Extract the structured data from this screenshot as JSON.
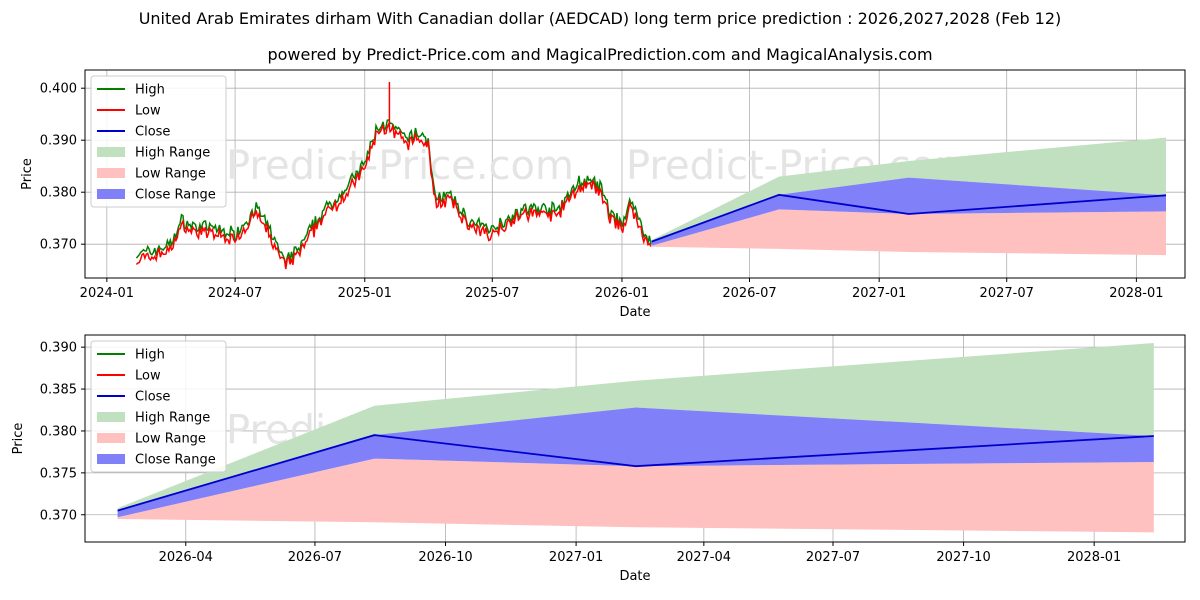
{
  "title": "United Arab Emirates dirham With Canadian dollar (AEDCAD) long term price prediction : 2026,2027,2028 (Feb 12)",
  "subtitle": "powered by Predict-Price.com and MagicalPrediction.com and MagicalAnalysis.com",
  "watermark": "Predict-Price.com",
  "colors": {
    "high": "#008000",
    "low": "#ff0000",
    "close": "#0000cd",
    "high_range": "#c0e0c0",
    "low_range": "#ffc0c0",
    "close_range": "#8080f8"
  },
  "chart_data": [
    {
      "type": "line",
      "panel": "top",
      "xlabel": "Date",
      "ylabel": "Price",
      "x_ticks": [
        "2024-01",
        "2024-07",
        "2025-01",
        "2025-07",
        "2026-01",
        "2026-07",
        "2027-01",
        "2027-07",
        "2028-01"
      ],
      "y_ticks": [
        "0.370",
        "0.380",
        "0.390",
        "0.400"
      ],
      "xlim": [
        "2023-12-01",
        "2028-03-10"
      ],
      "ylim": [
        0.3635,
        0.4035
      ],
      "grid": true,
      "legend": [
        "High",
        "Low",
        "Close",
        "High Range",
        "Low Range",
        "Close Range"
      ],
      "legend_position": "top-left",
      "history_dates": [
        "2024-02-12",
        "2024-03-01",
        "2024-04-01",
        "2024-04-15",
        "2024-05-01",
        "2024-06-01",
        "2024-07-01",
        "2024-08-01",
        "2024-08-20",
        "2024-09-10",
        "2024-10-01",
        "2024-11-01",
        "2024-12-01",
        "2025-01-01",
        "2025-01-20",
        "2025-02-03",
        "2025-02-15",
        "2025-03-01",
        "2025-03-15",
        "2025-04-01",
        "2025-04-10",
        "2025-05-01",
        "2025-06-01",
        "2025-07-01",
        "2025-08-01",
        "2025-09-01",
        "2025-10-01",
        "2025-11-01",
        "2025-11-20",
        "2025-12-01",
        "2025-12-15",
        "2026-01-01",
        "2026-01-15",
        "2026-02-01",
        "2026-02-12"
      ],
      "history_values": [
        0.3675,
        0.368,
        0.3695,
        0.374,
        0.373,
        0.3725,
        0.3715,
        0.3765,
        0.372,
        0.366,
        0.369,
        0.3755,
        0.3795,
        0.385,
        0.3925,
        0.3925,
        0.3915,
        0.3895,
        0.391,
        0.3895,
        0.3785,
        0.379,
        0.3735,
        0.3725,
        0.3755,
        0.3765,
        0.376,
        0.3815,
        0.3815,
        0.3805,
        0.3755,
        0.3735,
        0.378,
        0.3715,
        0.3705
      ],
      "forecast_dates": [
        "2026-02-12",
        "2026-08-12",
        "2027-02-12",
        "2028-02-12"
      ],
      "series": [
        {
          "name": "Close",
          "values": [
            0.3705,
            0.3795,
            0.3758,
            0.3794
          ]
        },
        {
          "name": "High Range upper",
          "values": [
            0.3708,
            0.383,
            0.386,
            0.3905
          ]
        },
        {
          "name": "Close Range upper",
          "values": [
            0.3705,
            0.3795,
            0.3828,
            0.3794
          ]
        },
        {
          "name": "Close Range lower",
          "values": [
            0.3697,
            0.3767,
            0.3758,
            0.3763
          ]
        },
        {
          "name": "Low Range lower",
          "values": [
            0.3695,
            0.3691,
            0.3685,
            0.3679
          ]
        }
      ]
    },
    {
      "type": "area",
      "panel": "bottom",
      "xlabel": "Date",
      "ylabel": "Price",
      "x_ticks": [
        "2026-04",
        "2026-07",
        "2026-10",
        "2027-01",
        "2027-04",
        "2027-07",
        "2027-10",
        "2028-01"
      ],
      "y_ticks": [
        "0.370",
        "0.375",
        "0.380",
        "0.385",
        "0.390"
      ],
      "xlim": [
        "2026-01-20",
        "2028-03-05"
      ],
      "ylim": [
        0.36675,
        0.39145
      ],
      "grid": true,
      "legend": [
        "High",
        "Low",
        "Close",
        "High Range",
        "Low Range",
        "Close Range"
      ],
      "legend_position": "top-left",
      "forecast_dates": [
        "2026-02-12",
        "2026-08-12",
        "2027-02-12",
        "2028-02-12"
      ],
      "series": [
        {
          "name": "Close",
          "values": [
            0.3705,
            0.3795,
            0.3758,
            0.3794
          ]
        },
        {
          "name": "High Range upper",
          "values": [
            0.3708,
            0.383,
            0.386,
            0.3905
          ]
        },
        {
          "name": "Close Range upper",
          "values": [
            0.3705,
            0.3795,
            0.3828,
            0.3794
          ]
        },
        {
          "name": "Close Range lower",
          "values": [
            0.3697,
            0.3767,
            0.3758,
            0.3763
          ]
        },
        {
          "name": "Low Range lower",
          "values": [
            0.3695,
            0.3691,
            0.3685,
            0.3679
          ]
        }
      ]
    }
  ]
}
